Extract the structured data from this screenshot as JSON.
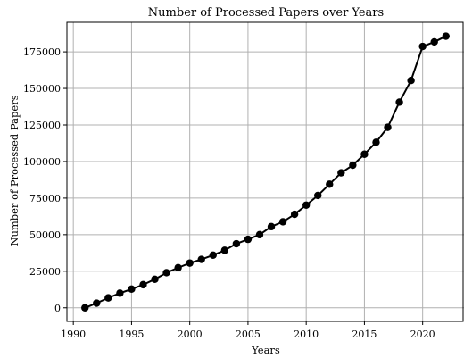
{
  "chart_data": {
    "type": "line",
    "title": "Number of Processed Papers over Years",
    "xlabel": "Years",
    "ylabel": "Number of Processed Papers",
    "xlim": [
      1989.45,
      2023.55
    ],
    "ylim": [
      -9300,
      195200
    ],
    "x_ticks": [
      1990,
      1995,
      2000,
      2005,
      2010,
      2015,
      2020
    ],
    "y_ticks": [
      0,
      25000,
      50000,
      75000,
      100000,
      125000,
      150000,
      175000
    ],
    "grid": true,
    "legend": "none",
    "series": [
      {
        "color": "#000000",
        "marker": "circle",
        "points": [
          [
            1991,
            0
          ],
          [
            1992,
            3200
          ],
          [
            1993,
            6800
          ],
          [
            1994,
            10000
          ],
          [
            1995,
            12800
          ],
          [
            1996,
            15800
          ],
          [
            1997,
            19500
          ],
          [
            1998,
            24000
          ],
          [
            1999,
            27400
          ],
          [
            2000,
            30600
          ],
          [
            2001,
            33100
          ],
          [
            2002,
            36000
          ],
          [
            2003,
            39300
          ],
          [
            2004,
            43800
          ],
          [
            2005,
            46800
          ],
          [
            2006,
            50000
          ],
          [
            2007,
            55500
          ],
          [
            2008,
            58800
          ],
          [
            2009,
            63900
          ],
          [
            2010,
            70200
          ],
          [
            2011,
            76800
          ],
          [
            2012,
            84500
          ],
          [
            2013,
            92300
          ],
          [
            2014,
            97500
          ],
          [
            2015,
            105000
          ],
          [
            2016,
            113200
          ],
          [
            2017,
            123400
          ],
          [
            2018,
            140600
          ],
          [
            2019,
            155400
          ],
          [
            2020,
            178700
          ],
          [
            2021,
            181800
          ],
          [
            2022,
            185700
          ]
        ]
      }
    ]
  }
}
